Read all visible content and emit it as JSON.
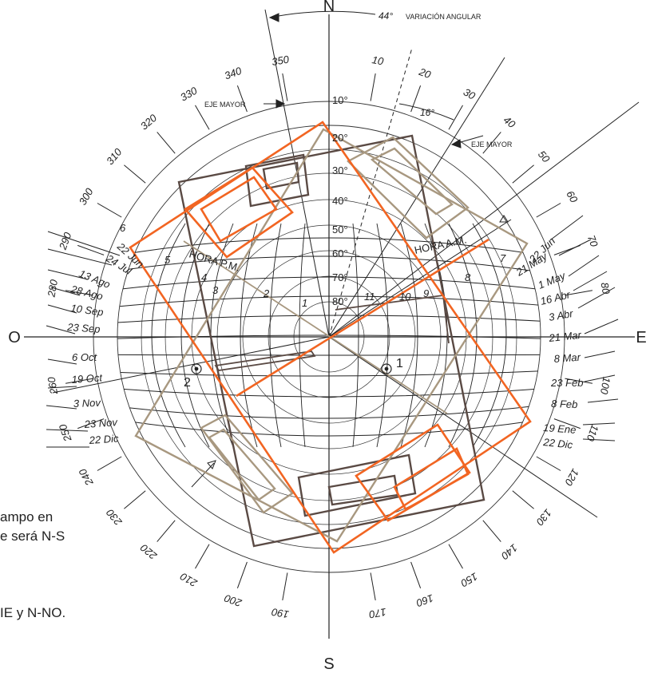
{
  "compass": {
    "north": "N",
    "south": "S",
    "east": "E",
    "west": "O"
  },
  "header": {
    "angle": "44°",
    "caption": "VARIACIÓN ANGULAR"
  },
  "annotations": {
    "eje_mayor_left": "EJE MAYOR",
    "eje_mayor_right": "EJE MAYOR",
    "angle_16": "16°",
    "hora_pm": "HORA P.M.",
    "hora_am": "HORA A.M.",
    "point_1": "1",
    "point_2": "2"
  },
  "azimuth_labels": [
    "10",
    "20",
    "30",
    "40",
    "50",
    "60",
    "70",
    "80",
    "100",
    "110",
    "120",
    "130",
    "140",
    "150",
    "160",
    "170",
    "190",
    "200",
    "210",
    "220",
    "230",
    "240",
    "250",
    "260",
    "280",
    "290",
    "300",
    "310",
    "320",
    "330",
    "340",
    "350"
  ],
  "altitude_labels": [
    "10°",
    "20°",
    "30°",
    "40°",
    "50°",
    "60°",
    "70°",
    "80°"
  ],
  "hours_pm": [
    "6",
    "5",
    "4",
    "3",
    "2",
    "1"
  ],
  "hours_am": [
    "11",
    "10",
    "9",
    "8",
    "7"
  ],
  "dates_left": [
    "22 Jun",
    "24 Jul",
    "13 Ago",
    "28 Ago",
    "10 Sep",
    "23 Sep",
    "6 Oct",
    "19 Oct",
    "3 Nov",
    "23 Nov",
    "22 Dic"
  ],
  "dates_right": [
    "22 Jun",
    "21 May",
    "1 May",
    "16 Abr",
    "3 Abr",
    "21 Mar",
    "8 Mar",
    "23 Feb",
    "8 Feb",
    "19 Ene",
    "22 Dic"
  ],
  "side_text": [
    "ampo en",
    "e será N-S",
    "IE y N-NO."
  ],
  "colors": {
    "orange": "#f26522",
    "tan": "#a89880",
    "brown": "#5a4a44"
  }
}
